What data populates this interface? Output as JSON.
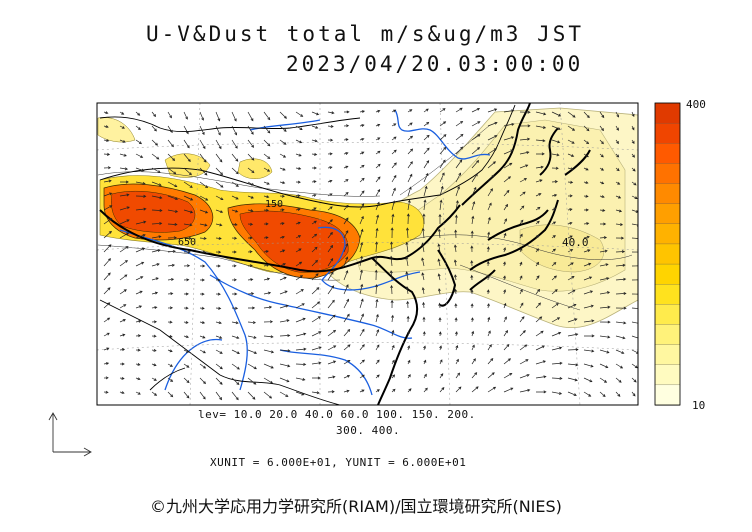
{
  "header": {
    "title_line1": "U-V&Dust total m/s&ug/m3 JST",
    "title_line2": "2023/04/20.03:00:00"
  },
  "map": {
    "contour_labels": [
      "150",
      "650",
      "40.0"
    ],
    "coastline_color": "#000000",
    "river_color": "#1a5fe0",
    "vector_color": "#222222"
  },
  "legend": {
    "levels_line1": "lev= 10.0 20.0 40.0 60.0 100. 150. 200.",
    "levels_line2": "300. 400.",
    "units_line": "XUNIT = 6.000E+01, YUNIT = 6.000E+01",
    "colorbar_max": "400",
    "colorbar_min": "10",
    "colorbar_colors": [
      "#ffffe0",
      "#fffbc0",
      "#fff7a0",
      "#fff27a",
      "#ffeb4c",
      "#ffe21e",
      "#ffd400",
      "#ffc400",
      "#ffb200",
      "#ff9f00",
      "#ff8a00",
      "#ff7200",
      "#ff5a00",
      "#f04500",
      "#e03a00"
    ]
  },
  "footer": {
    "credit": "©九州大学応用力学研究所(RIAM)/国立環境研究所(NIES)"
  }
}
